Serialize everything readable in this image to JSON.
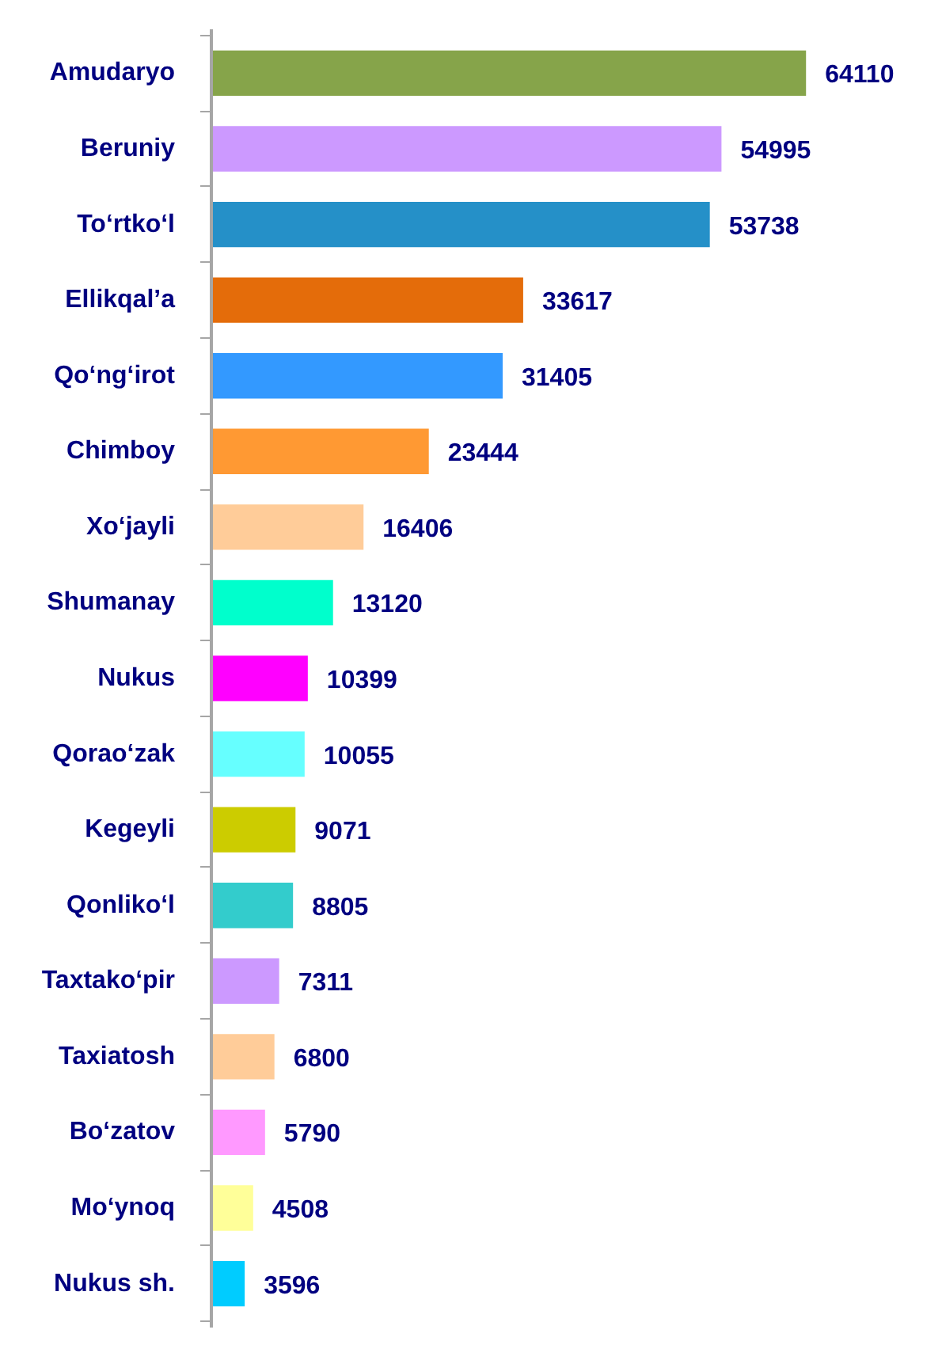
{
  "chart_data": {
    "type": "bar",
    "orientation": "horizontal",
    "categories": [
      "Amudaryo",
      "Beruniy",
      "To‘rtko‘l",
      "Ellikqal’a",
      "Qo‘ng‘irot",
      "Chimboy",
      "Xo‘jayli",
      "Shumanay",
      "Nukus",
      "Qorao‘zak",
      "Kegeyli",
      "Qonliko‘l",
      "Taxtako‘pir",
      "Taxiatosh",
      "Bo‘zatov",
      "Mo‘ynoq",
      "Nukus sh."
    ],
    "values": [
      64110,
      54995,
      53738,
      33617,
      31405,
      23444,
      16406,
      13120,
      10399,
      10055,
      9071,
      8805,
      7311,
      6800,
      5790,
      4508,
      3596
    ],
    "colors": [
      "#86a44a",
      "#cc99ff",
      "#2590c8",
      "#e46c0a",
      "#3399ff",
      "#ff9933",
      "#ffcc99",
      "#00ffcc",
      "#ff00ff",
      "#66ffff",
      "#cccc00",
      "#33cccc",
      "#cc99ff",
      "#ffcc99",
      "#ff99ff",
      "#ffff99",
      "#00ccff"
    ],
    "data_labels": true
  }
}
